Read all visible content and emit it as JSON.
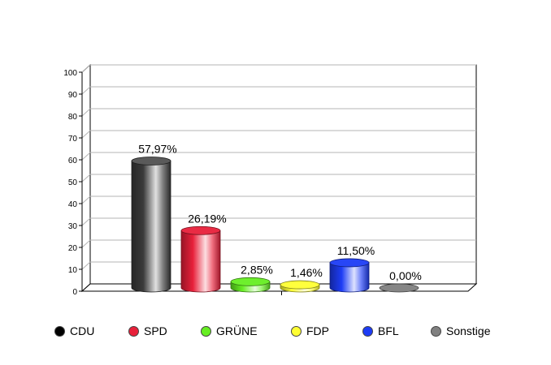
{
  "chart_data": {
    "type": "bar",
    "categories": [
      "CDU",
      "SPD",
      "GRÜNE",
      "FDP",
      "BFL",
      "Sonstige"
    ],
    "values": [
      57.97,
      26.19,
      2.85,
      1.46,
      11.5,
      0.0
    ],
    "value_labels": [
      "57,97%",
      "26,19%",
      "2,85%",
      "1,46%",
      "11,50%",
      "0,00%"
    ],
    "colors": [
      "#000000",
      "#e8203a",
      "#66ee22",
      "#ffff33",
      "#1d3cf5",
      "#808080"
    ],
    "ylim": [
      0,
      100
    ],
    "yticks": [
      0,
      10,
      20,
      30,
      40,
      50,
      60,
      70,
      80,
      90,
      100
    ],
    "ytick_labels": [
      "0",
      "10",
      "20",
      "30",
      "40",
      "50",
      "60",
      "70",
      "80",
      "90",
      "100"
    ],
    "grid": true,
    "legend_position": "bottom",
    "title": "",
    "xlabel": "",
    "ylabel": ""
  }
}
